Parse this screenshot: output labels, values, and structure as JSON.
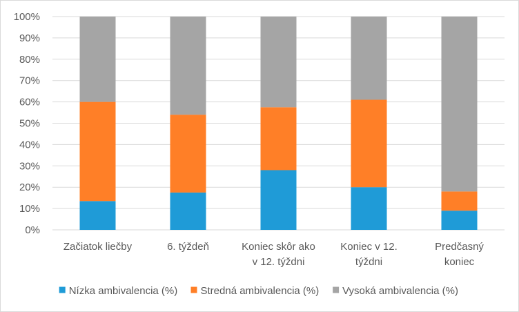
{
  "chart_data": {
    "type": "bar",
    "stacked": true,
    "percent": true,
    "categories": [
      [
        "Začiatok liečby"
      ],
      [
        "6. týždeň"
      ],
      [
        "Koniec skôr ako",
        "v 12. týždni"
      ],
      [
        "Koniec v 12.",
        "týždni"
      ],
      [
        "Predčasný",
        "koniec"
      ]
    ],
    "series": [
      {
        "name": "Nízka ambivalencia (%)",
        "color": "#1f9bd7",
        "values": [
          13.5,
          17.5,
          28,
          20,
          9
        ]
      },
      {
        "name": "Stredná ambivalencia (%)",
        "color": "#ff7f27",
        "values": [
          46.5,
          36.5,
          29.5,
          41,
          9
        ]
      },
      {
        "name": "Vysoká ambivalencia (%)",
        "color": "#a5a5a5",
        "values": [
          40,
          46,
          42.5,
          39,
          82
        ]
      }
    ],
    "yticks": [
      "0%",
      "10%",
      "20%",
      "30%",
      "40%",
      "50%",
      "60%",
      "70%",
      "80%",
      "90%",
      "100%"
    ],
    "ylim": [
      0,
      100
    ],
    "grid": true,
    "legend_position": "bottom"
  }
}
